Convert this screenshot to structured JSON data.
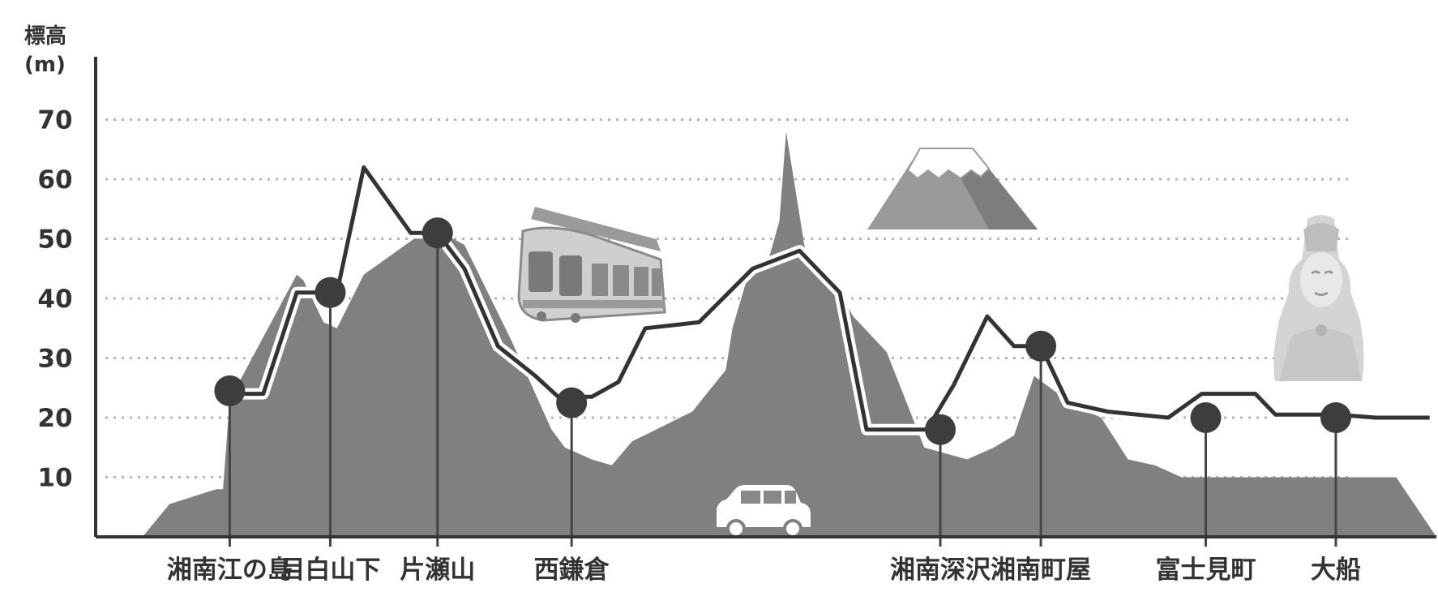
{
  "chart_data": {
    "type": "area",
    "ylabel_line1": "標高",
    "ylabel_line2": "(m)",
    "yticks": [
      10,
      20,
      30,
      40,
      50,
      60,
      70
    ],
    "ylim": [
      0,
      72
    ],
    "grid": "horizontal-dotted",
    "series": [
      {
        "kind": "terrain",
        "x": [
          0.035,
          0.055,
          0.09,
          0.095,
          0.1,
          0.15,
          0.155,
          0.17,
          0.18,
          0.2,
          0.25,
          0.275,
          0.31,
          0.34,
          0.35,
          0.37,
          0.385,
          0.4,
          0.445,
          0.47,
          0.475,
          0.488,
          0.5,
          0.51,
          0.515,
          0.53,
          0.55,
          0.565,
          0.59,
          0.618,
          0.65,
          0.67,
          0.685,
          0.7,
          0.73,
          0.75,
          0.77,
          0.79,
          0.81,
          0.87,
          0.97,
          1.0
        ],
        "y": [
          0,
          5.5,
          8,
          8,
          23,
          44,
          43,
          36,
          35,
          44,
          52,
          49,
          33,
          18,
          15,
          13,
          12,
          16,
          21,
          28,
          35,
          45,
          45,
          53,
          68,
          47,
          43,
          37,
          31,
          15,
          13,
          15,
          17,
          27,
          22,
          20,
          13,
          12,
          10,
          10,
          10,
          0
        ]
      },
      {
        "kind": "track",
        "x": [
          0.1,
          0.125,
          0.15,
          0.18,
          0.2,
          0.235,
          0.255,
          0.275,
          0.3,
          0.328,
          0.345,
          0.37,
          0.39,
          0.41,
          0.45,
          0.49,
          0.525,
          0.555,
          0.575,
          0.6,
          0.62,
          0.64,
          0.665,
          0.685,
          0.705,
          0.725,
          0.755,
          0.8,
          0.825,
          0.865,
          0.88,
          0.925,
          0.955,
          0.995
        ],
        "y": [
          24,
          24,
          41,
          41,
          62,
          51,
          51,
          45,
          32,
          27,
          23.5,
          23.5,
          26,
          35,
          36,
          45,
          48,
          41,
          18,
          18,
          18,
          25.5,
          37,
          32,
          32,
          22.5,
          21,
          20,
          24,
          24,
          20.5,
          20.5,
          20,
          20
        ]
      }
    ],
    "stations": [
      {
        "name": "湘南江の島",
        "x": 0.1,
        "elev": 24.5
      },
      {
        "name": "目白山下",
        "x": 0.175,
        "elev": 41
      },
      {
        "name": "片瀬山",
        "x": 0.255,
        "elev": 51
      },
      {
        "name": "西鎌倉",
        "x": 0.355,
        "elev": 22.5
      },
      {
        "name": "湘南深沢",
        "x": 0.63,
        "elev": 18
      },
      {
        "name": "湘南町屋",
        "x": 0.705,
        "elev": 32
      },
      {
        "name": "富士見町",
        "x": 0.828,
        "elev": 20
      },
      {
        "name": "大船",
        "x": 0.925,
        "elev": 20
      }
    ],
    "illustrations": [
      "monorail-train-icon",
      "car-icon",
      "mount-fuji-icon",
      "kannon-statue-icon"
    ],
    "colors": {
      "terrain": "#808080",
      "track": "#333333",
      "station_dot": "#3d3d3d",
      "axis": "#333333",
      "grid": "#b5b5b5"
    }
  }
}
